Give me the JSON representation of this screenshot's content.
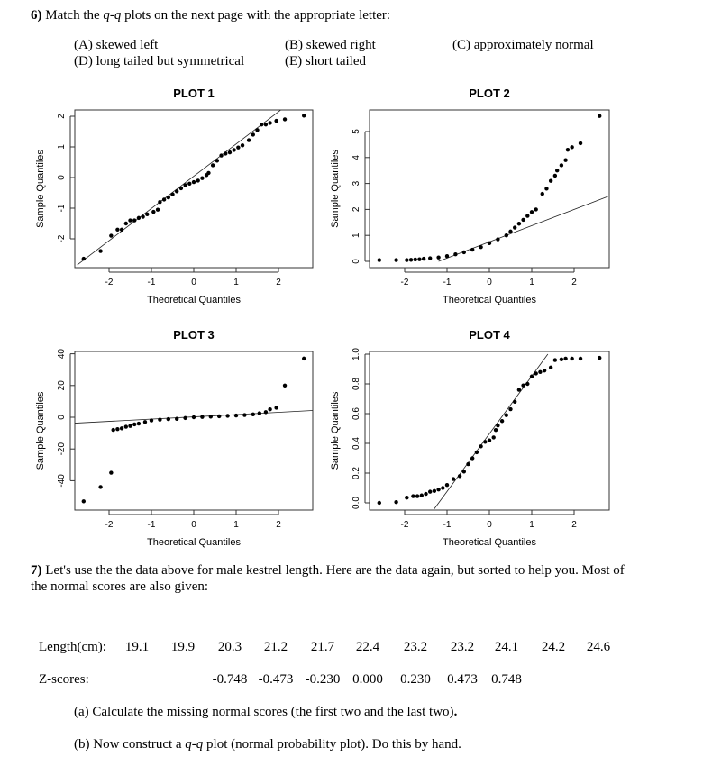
{
  "q6": {
    "number": "6)",
    "prefix": "Match the ",
    "qq": "q-q",
    "suffix": " plots on the next page with the appropriate letter:",
    "options": [
      "(A) skewed left",
      "(B) skewed right",
      "(C) approximately normal",
      "(D) long tailed but symmetrical",
      "(E) short tailed"
    ]
  },
  "chart_data": [
    {
      "type": "scatter",
      "title": "PLOT 1",
      "xlabel": "Theoretical Quantiles",
      "ylabel": "Sample Quantiles",
      "xticks": [
        -2,
        -1,
        0,
        1,
        2
      ],
      "yticks": [
        -2,
        -1,
        0,
        1,
        2
      ],
      "points": [
        [
          -2.6,
          -2.65
        ],
        [
          -2.2,
          -2.4
        ],
        [
          -1.95,
          -1.9
        ],
        [
          -1.8,
          -1.7
        ],
        [
          -1.7,
          -1.7
        ],
        [
          -1.6,
          -1.5
        ],
        [
          -1.5,
          -1.4
        ],
        [
          -1.4,
          -1.4
        ],
        [
          -1.3,
          -1.32
        ],
        [
          -1.2,
          -1.28
        ],
        [
          -1.1,
          -1.2
        ],
        [
          -0.95,
          -1.12
        ],
        [
          -0.85,
          -1.05
        ],
        [
          -0.8,
          -0.8
        ],
        [
          -0.7,
          -0.72
        ],
        [
          -0.6,
          -0.65
        ],
        [
          -0.5,
          -0.55
        ],
        [
          -0.4,
          -0.45
        ],
        [
          -0.3,
          -0.35
        ],
        [
          -0.2,
          -0.25
        ],
        [
          -0.1,
          -0.2
        ],
        [
          0,
          -0.15
        ],
        [
          0.1,
          -0.1
        ],
        [
          0.2,
          -0.02
        ],
        [
          0.3,
          0.08
        ],
        [
          0.35,
          0.15
        ],
        [
          0.45,
          0.4
        ],
        [
          0.55,
          0.55
        ],
        [
          0.65,
          0.72
        ],
        [
          0.75,
          0.78
        ],
        [
          0.85,
          0.82
        ],
        [
          0.95,
          0.9
        ],
        [
          1.05,
          0.98
        ],
        [
          1.15,
          1.05
        ],
        [
          1.3,
          1.22
        ],
        [
          1.4,
          1.4
        ],
        [
          1.5,
          1.55
        ],
        [
          1.6,
          1.73
        ],
        [
          1.7,
          1.73
        ],
        [
          1.8,
          1.78
        ],
        [
          1.95,
          1.85
        ],
        [
          2.15,
          1.9
        ],
        [
          2.6,
          2.02
        ]
      ],
      "line": [
        [
          -2.75,
          -2.85
        ],
        [
          2.05,
          2.2
        ]
      ]
    },
    {
      "type": "scatter",
      "title": "PLOT 2",
      "xlabel": "Theoretical Quantiles",
      "ylabel": "Sample Quantiles",
      "xticks": [
        -2,
        -1,
        0,
        1,
        2
      ],
      "yticks": [
        0,
        1,
        2,
        3,
        4,
        5
      ],
      "points": [
        [
          -2.6,
          0.05
        ],
        [
          -2.2,
          0.05
        ],
        [
          -1.95,
          0.05
        ],
        [
          -1.85,
          0.06
        ],
        [
          -1.75,
          0.07
        ],
        [
          -1.65,
          0.08
        ],
        [
          -1.55,
          0.1
        ],
        [
          -1.4,
          0.12
        ],
        [
          -1.2,
          0.15
        ],
        [
          -1,
          0.2
        ],
        [
          -0.8,
          0.27
        ],
        [
          -0.6,
          0.35
        ],
        [
          -0.4,
          0.45
        ],
        [
          -0.2,
          0.55
        ],
        [
          0,
          0.7
        ],
        [
          0.2,
          0.85
        ],
        [
          0.4,
          1.0
        ],
        [
          0.5,
          1.15
        ],
        [
          0.6,
          1.3
        ],
        [
          0.7,
          1.45
        ],
        [
          0.8,
          1.6
        ],
        [
          0.9,
          1.75
        ],
        [
          1.0,
          1.9
        ],
        [
          1.1,
          2.0
        ],
        [
          1.25,
          2.6
        ],
        [
          1.35,
          2.8
        ],
        [
          1.45,
          3.1
        ],
        [
          1.55,
          3.3
        ],
        [
          1.6,
          3.5
        ],
        [
          1.7,
          3.7
        ],
        [
          1.8,
          3.9
        ],
        [
          1.85,
          4.3
        ],
        [
          1.95,
          4.4
        ],
        [
          2.15,
          4.55
        ],
        [
          2.6,
          5.6
        ]
      ],
      "line": [
        [
          -1.2,
          0
        ],
        [
          2.8,
          2.5
        ]
      ]
    },
    {
      "type": "scatter",
      "title": "PLOT 3",
      "xlabel": "Theoretical Quantiles",
      "ylabel": "Sample Quantiles",
      "xticks": [
        -2,
        -1,
        0,
        1,
        2
      ],
      "yticks": [
        -40,
        -20,
        0,
        20,
        40
      ],
      "points": [
        [
          -2.6,
          -53
        ],
        [
          -2.2,
          -44
        ],
        [
          -1.95,
          -35
        ],
        [
          -1.9,
          -8
        ],
        [
          -1.8,
          -7.5
        ],
        [
          -1.7,
          -7
        ],
        [
          -1.6,
          -6
        ],
        [
          -1.5,
          -5.5
        ],
        [
          -1.4,
          -4.5
        ],
        [
          -1.3,
          -4
        ],
        [
          -1.15,
          -3
        ],
        [
          -1,
          -2
        ],
        [
          -0.8,
          -1.5
        ],
        [
          -0.6,
          -1.2
        ],
        [
          -0.4,
          -1
        ],
        [
          -0.2,
          -0.5
        ],
        [
          0,
          0
        ],
        [
          0.2,
          0.2
        ],
        [
          0.4,
          0.4
        ],
        [
          0.6,
          0.6
        ],
        [
          0.8,
          0.9
        ],
        [
          1,
          1.1
        ],
        [
          1.2,
          1.4
        ],
        [
          1.4,
          1.8
        ],
        [
          1.55,
          2.5
        ],
        [
          1.7,
          3.2
        ],
        [
          1.8,
          5
        ],
        [
          1.95,
          6
        ],
        [
          2.15,
          20
        ],
        [
          2.6,
          37
        ]
      ],
      "line": [
        [
          -2.85,
          -3.8
        ],
        [
          2.85,
          4.3
        ]
      ]
    },
    {
      "type": "scatter",
      "title": "PLOT 4",
      "xlabel": "Theoretical Quantiles",
      "ylabel": "Sample Quantiles",
      "xticks": [
        -2,
        -1,
        0,
        1,
        2
      ],
      "yticks": [
        "0.0",
        "0.2",
        "0.4",
        "0.6",
        "0.8",
        "1.0"
      ],
      "points": [
        [
          -2.6,
          0
        ],
        [
          -2.2,
          0.005
        ],
        [
          -1.95,
          0.035
        ],
        [
          -1.8,
          0.045
        ],
        [
          -1.7,
          0.045
        ],
        [
          -1.6,
          0.05
        ],
        [
          -1.5,
          0.06
        ],
        [
          -1.4,
          0.075
        ],
        [
          -1.3,
          0.08
        ],
        [
          -1.2,
          0.09
        ],
        [
          -1.1,
          0.1
        ],
        [
          -1.0,
          0.12
        ],
        [
          -0.85,
          0.16
        ],
        [
          -0.7,
          0.18
        ],
        [
          -0.6,
          0.21
        ],
        [
          -0.5,
          0.26
        ],
        [
          -0.4,
          0.3
        ],
        [
          -0.3,
          0.34
        ],
        [
          -0.2,
          0.38
        ],
        [
          -0.1,
          0.41
        ],
        [
          0,
          0.42
        ],
        [
          0.1,
          0.44
        ],
        [
          0.15,
          0.49
        ],
        [
          0.2,
          0.52
        ],
        [
          0.3,
          0.55
        ],
        [
          0.4,
          0.59
        ],
        [
          0.5,
          0.63
        ],
        [
          0.6,
          0.68
        ],
        [
          0.7,
          0.76
        ],
        [
          0.8,
          0.79
        ],
        [
          0.9,
          0.8
        ],
        [
          1.0,
          0.85
        ],
        [
          1.1,
          0.87
        ],
        [
          1.2,
          0.88
        ],
        [
          1.3,
          0.89
        ],
        [
          1.45,
          0.91
        ],
        [
          1.55,
          0.96
        ],
        [
          1.7,
          0.965
        ],
        [
          1.8,
          0.97
        ],
        [
          1.95,
          0.97
        ],
        [
          2.15,
          0.97
        ],
        [
          2.6,
          0.975
        ]
      ],
      "line": [
        [
          -1.3,
          -0.04
        ],
        [
          1.38,
          1.0
        ]
      ]
    }
  ],
  "q7": {
    "number": "7)",
    "text_line1": "Let's use the the data above for male kestrel length.  Here are the data again, but sorted to help you.  Most of",
    "text_line2": "the normal scores are also given:",
    "length_label": "Length(cm):",
    "lengths": [
      "19.1",
      "19.9",
      "20.3",
      "21.2",
      "21.7",
      "22.4",
      "23.2",
      "23.2",
      "24.1",
      "24.2",
      "24.6"
    ],
    "z_label": "Z-scores:",
    "zscores": [
      "-0.748",
      "-0.473",
      "-0.230",
      "0.000",
      "0.230",
      "0.473",
      "0.748"
    ],
    "part_a": "(a) Calculate the missing normal scores (the first two and the last two)",
    "part_a_end": ".",
    "part_b_prefix": "(b) Now construct a ",
    "part_b_qq": "q-q",
    "part_b_suffix": " plot (normal probability plot).  Do this by hand."
  }
}
